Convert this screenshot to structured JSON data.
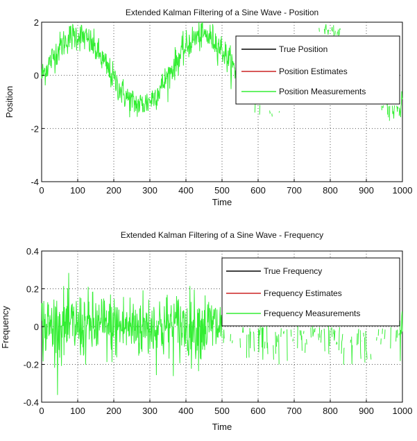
{
  "chart_data": [
    {
      "type": "line",
      "title": "Extended Kalman Filtering of a Sine Wave - Position",
      "xlabel": "Time",
      "ylabel": "Position",
      "xlim": [
        0,
        1000
      ],
      "ylim": [
        -4,
        2
      ],
      "x_ticks": [
        "0",
        "100",
        "200",
        "300",
        "400",
        "500",
        "600",
        "700",
        "800",
        "900",
        "1000"
      ],
      "y_ticks": [
        "-4",
        "-2",
        "0",
        "2"
      ],
      "grid": true,
      "legend_position": "top-right",
      "series": [
        {
          "name": "True Position",
          "color": "#000000",
          "style": "solid"
        },
        {
          "name": "Position Estimates",
          "color": "#cc2222",
          "style": "solid"
        },
        {
          "name": "Position Measurements",
          "color": "#33ee33",
          "style": "solid",
          "description": "noisy sine, amplitude ~1.3, period ~350, noise ~0.3; visible portion roughly 0-560 and 860-1000"
        }
      ],
      "sine": {
        "amplitude": 1.3,
        "period": 350,
        "offset": 0.2,
        "noise": 0.28
      }
    },
    {
      "type": "line",
      "title": "Extended Kalman Filtering of a Sine Wave - Frequency",
      "xlabel": "Time",
      "ylabel": "Frequency",
      "xlim": [
        0,
        1000
      ],
      "ylim": [
        -0.4,
        0.4
      ],
      "x_ticks": [
        "0",
        "100",
        "200",
        "300",
        "400",
        "500",
        "600",
        "700",
        "800",
        "900",
        "1000"
      ],
      "y_ticks": [
        "-0.4",
        "-0.2",
        "0",
        "0.2",
        "0.4"
      ],
      "grid": true,
      "legend_position": "top-right",
      "series": [
        {
          "name": "True Frequency",
          "color": "#000000",
          "style": "solid"
        },
        {
          "name": "Frequency Estimates",
          "color": "#cc2222",
          "style": "solid"
        },
        {
          "name": "Frequency Measurements",
          "color": "#33ee33",
          "style": "solid",
          "description": "noise around 0, spread roughly -0.3 to 0.35"
        }
      ],
      "noise": {
        "center": 0.0,
        "spread": 0.09
      }
    }
  ]
}
